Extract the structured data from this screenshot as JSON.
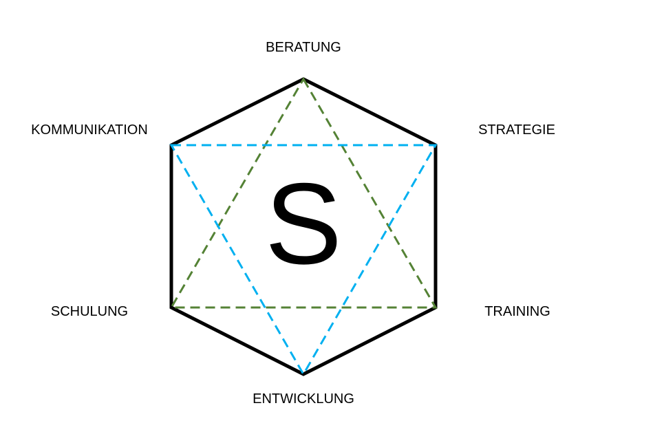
{
  "center_letter": "S",
  "vertices": {
    "top": "BERATUNG",
    "upper_right": "STRATEGIE",
    "lower_right": "TRAINING",
    "bottom": "ENTWICKLUNG",
    "lower_left": "SCHULUNG",
    "upper_left": "KOMMUNIKATION"
  },
  "colors": {
    "hexagon": "#000000",
    "triangle_up": "#548235",
    "triangle_down": "#00b0f0"
  }
}
